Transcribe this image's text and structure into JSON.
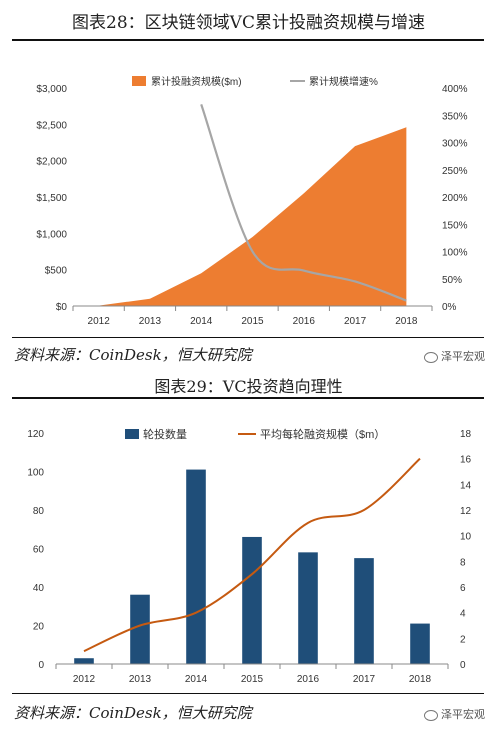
{
  "chart1": {
    "title": "图表28：区块链领域VC累计投融资规模与增速",
    "source": "资料来源：CoinDesk，恒大研究院",
    "watermark": "泽平宏观",
    "colors": {
      "area": "#ED7D31",
      "line": "#A6A6A6"
    }
  },
  "chart2": {
    "title": "图表29：VC投资趋向理性",
    "source": "资料来源：CoinDesk，恒大研究院",
    "watermark": "泽平宏观",
    "colors": {
      "bar": "#1F4E79",
      "line": "#C55A11"
    }
  },
  "chart_data": [
    {
      "type": "area",
      "categories": [
        "2012",
        "2013",
        "2014",
        "2015",
        "2016",
        "2017",
        "2018"
      ],
      "series": [
        {
          "name": "累计投融资规模($m)",
          "axis": "left",
          "type": "area",
          "values": [
            5,
            100,
            450,
            950,
            1550,
            2200,
            2460
          ]
        },
        {
          "name": "累计规模增速%",
          "axis": "right",
          "type": "line",
          "values": [
            null,
            null,
            370,
            100,
            65,
            45,
            10
          ]
        }
      ],
      "y_left": {
        "ylim": [
          0,
          3000
        ],
        "ticks": [
          0,
          500,
          1000,
          1500,
          2000,
          2500,
          3000
        ],
        "tick_labels": [
          "$0",
          "$500",
          "$1,000",
          "$1,500",
          "$2,000",
          "$2,500",
          "$3,000"
        ]
      },
      "y_right": {
        "ylim": [
          0,
          400
        ],
        "ticks": [
          0,
          50,
          100,
          150,
          200,
          250,
          300,
          350,
          400
        ],
        "tick_labels": [
          "0%",
          "50%",
          "100%",
          "150%",
          "200%",
          "250%",
          "300%",
          "350%",
          "400%"
        ]
      },
      "legend_position": "top",
      "grid": false
    },
    {
      "type": "bar",
      "categories": [
        "2012",
        "2013",
        "2014",
        "2015",
        "2016",
        "2017",
        "2018"
      ],
      "series": [
        {
          "name": "轮投数量",
          "axis": "left",
          "type": "bar",
          "values": [
            3,
            36,
            101,
            66,
            58,
            55,
            21
          ]
        },
        {
          "name": "平均每轮融资规模（$m）",
          "axis": "right",
          "type": "line",
          "values": [
            1,
            3,
            4,
            7,
            11,
            12,
            16
          ]
        }
      ],
      "y_left": {
        "ylim": [
          0,
          120
        ],
        "ticks": [
          0,
          20,
          40,
          60,
          80,
          100,
          120
        ],
        "tick_labels": [
          "0",
          "20",
          "40",
          "60",
          "80",
          "100",
          "120"
        ]
      },
      "y_right": {
        "ylim": [
          0,
          18
        ],
        "ticks": [
          0,
          2,
          4,
          6,
          8,
          10,
          12,
          14,
          16,
          18
        ],
        "tick_labels": [
          "0",
          "2",
          "4",
          "6",
          "8",
          "10",
          "12",
          "14",
          "16",
          "18"
        ]
      },
      "legend_position": "top",
      "grid": false
    }
  ]
}
